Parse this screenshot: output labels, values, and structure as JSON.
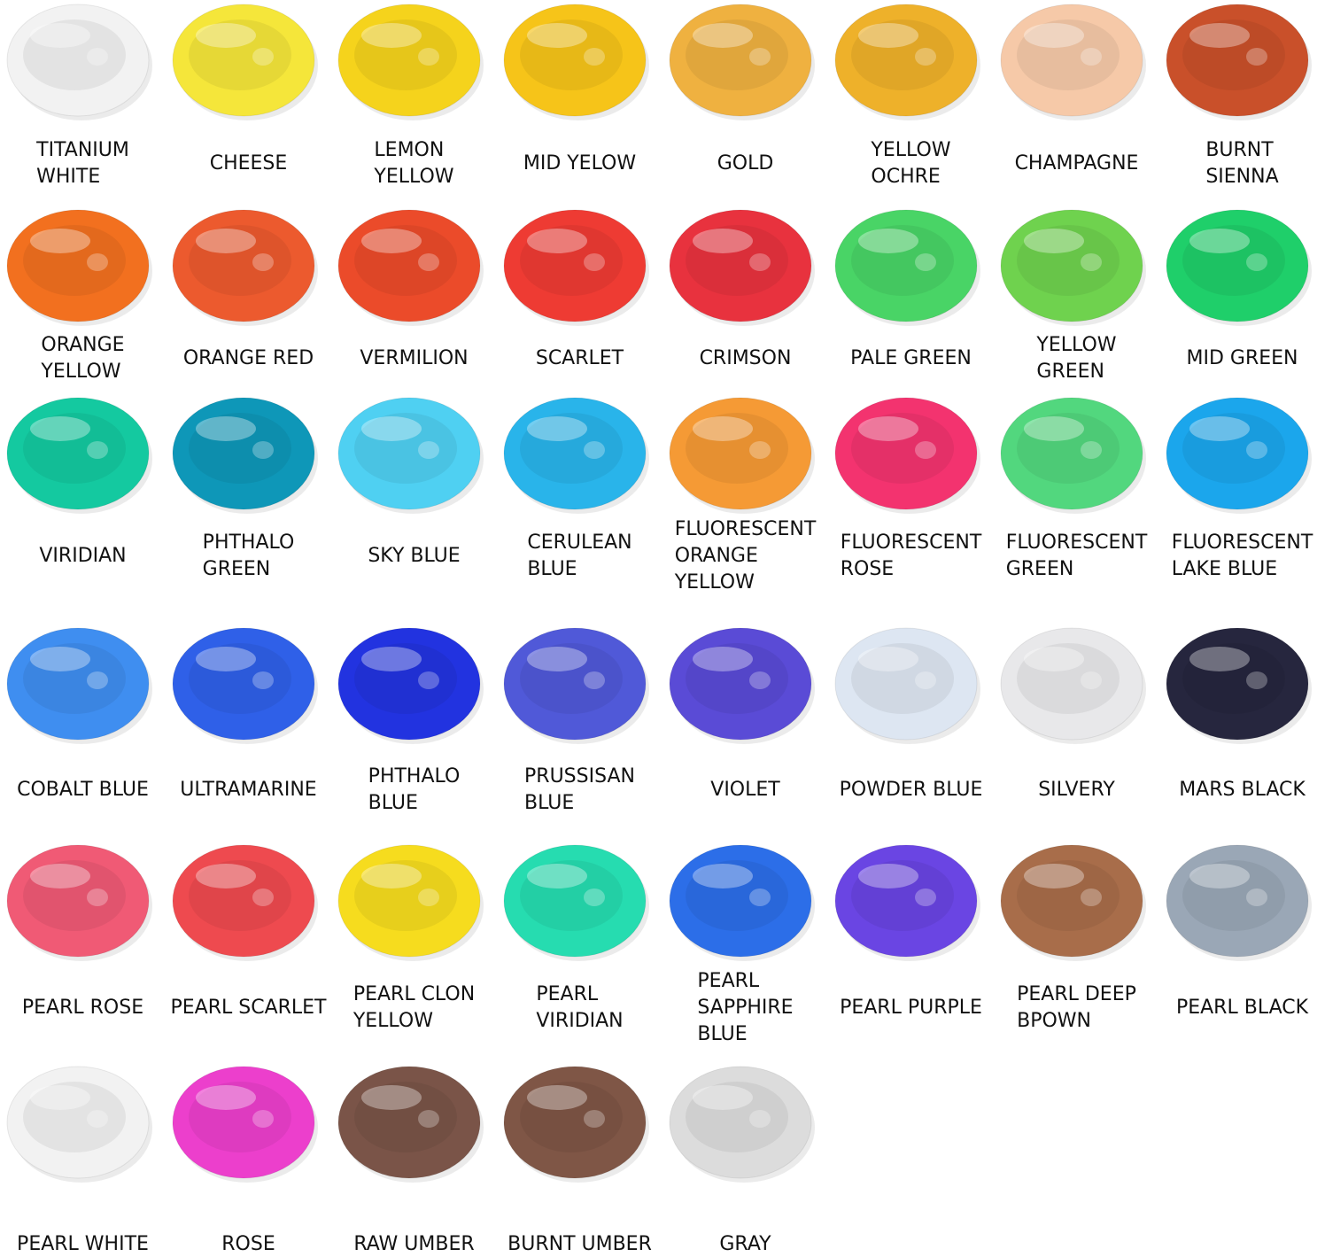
{
  "swatches": [
    {
      "lines": [
        "TITANIUM",
        "WHITE"
      ],
      "color": "#f2f2f2"
    },
    {
      "lines": [
        "CHEESE"
      ],
      "color": "#f5e63a"
    },
    {
      "lines": [
        "LEMON",
        "YELLOW"
      ],
      "color": "#f5d31c"
    },
    {
      "lines": [
        "MID YELOW"
      ],
      "color": "#f6c419"
    },
    {
      "lines": [
        "GOLD"
      ],
      "color": "#efb140"
    },
    {
      "lines": [
        "YELLOW",
        "OCHRE"
      ],
      "color": "#eeb12a"
    },
    {
      "lines": [
        "CHAMPAGNE"
      ],
      "color": "#f6c9a8"
    },
    {
      "lines": [
        "BURNT",
        "SIENNA"
      ],
      "color": "#c9502a"
    },
    {
      "lines": [
        "ORANGE",
        "YELLOW"
      ],
      "color": "#f2701f"
    },
    {
      "lines": [
        "ORANGE RED"
      ],
      "color": "#ec5a2e"
    },
    {
      "lines": [
        "VERMILION"
      ],
      "color": "#eb4b2a"
    },
    {
      "lines": [
        "SCARLET"
      ],
      "color": "#ee3b33"
    },
    {
      "lines": [
        "CRIMSON"
      ],
      "color": "#e8323e"
    },
    {
      "lines": [
        "PALE GREEN"
      ],
      "color": "#49d466"
    },
    {
      "lines": [
        "YELLOW",
        "GREEN"
      ],
      "color": "#6fd24e"
    },
    {
      "lines": [
        "MID GREEN"
      ],
      "color": "#1fcf6a"
    },
    {
      "lines": [
        "VIRIDIAN"
      ],
      "color": "#14c9a0"
    },
    {
      "lines": [
        "PHTHALO",
        "GREEN"
      ],
      "color": "#0e97b8"
    },
    {
      "lines": [
        "SKY BLUE"
      ],
      "color": "#4fd0f2"
    },
    {
      "lines": [
        "CERULEAN",
        "BLUE"
      ],
      "color": "#29b4ea"
    },
    {
      "lines": [
        "FLUORESCENT",
        "ORANGE",
        "YELLOW"
      ],
      "color": "#f59a35"
    },
    {
      "lines": [
        "FLUORESCENT",
        "ROSE"
      ],
      "color": "#f3336f"
    },
    {
      "lines": [
        "FLUORESCENT",
        "GREEN"
      ],
      "color": "#52d77e"
    },
    {
      "lines": [
        "FLUORESCENT",
        "LAKE BLUE"
      ],
      "color": "#1ba6ec"
    },
    {
      "lines": [
        "COBALT BLUE"
      ],
      "color": "#3f8ef0"
    },
    {
      "lines": [
        "ULTRAMARINE"
      ],
      "color": "#2f60e8"
    },
    {
      "lines": [
        "PHTHALO",
        "BLUE"
      ],
      "color": "#2233e0"
    },
    {
      "lines": [
        "PRUSSISAN",
        "BLUE"
      ],
      "color": "#5059d8"
    },
    {
      "lines": [
        "VIOLET"
      ],
      "color": "#5a4bd6"
    },
    {
      "lines": [
        "POWDER BLUE"
      ],
      "color": "#dde6f2"
    },
    {
      "lines": [
        "SILVERY"
      ],
      "color": "#e8e8ea"
    },
    {
      "lines": [
        "MARS BLACK"
      ],
      "color": "#26263e"
    },
    {
      "lines": [
        "PEARL ROSE"
      ],
      "color": "#f05a75"
    },
    {
      "lines": [
        "PEARL SCARLET"
      ],
      "color": "#ee4a4f"
    },
    {
      "lines": [
        "PEARL CLON",
        "YELLOW"
      ],
      "color": "#f6dc1e"
    },
    {
      "lines": [
        "PEARL",
        "VIRIDIAN"
      ],
      "color": "#26dcb0"
    },
    {
      "lines": [
        "PEARL",
        "SAPPHIRE",
        "BLUE"
      ],
      "color": "#2c6ee8"
    },
    {
      "lines": [
        "PEARL PURPLE"
      ],
      "color": "#6a45e3"
    },
    {
      "lines": [
        "PEARL DEEP",
        "BPOWN"
      ],
      "color": "#a86d4a"
    },
    {
      "lines": [
        "PEARL BLACK"
      ],
      "color": "#9aa7b6"
    },
    {
      "lines": [
        "PEARL WHITE"
      ],
      "color": "#f2f2f2"
    },
    {
      "lines": [
        "ROSE"
      ],
      "color": "#ec3fcc"
    },
    {
      "lines": [
        "RAW UMBER"
      ],
      "color": "#7a5448"
    },
    {
      "lines": [
        "BURNT UMBER"
      ],
      "color": "#7f5646"
    },
    {
      "lines": [
        "GRAY"
      ],
      "color": "#dcdcdc"
    }
  ]
}
